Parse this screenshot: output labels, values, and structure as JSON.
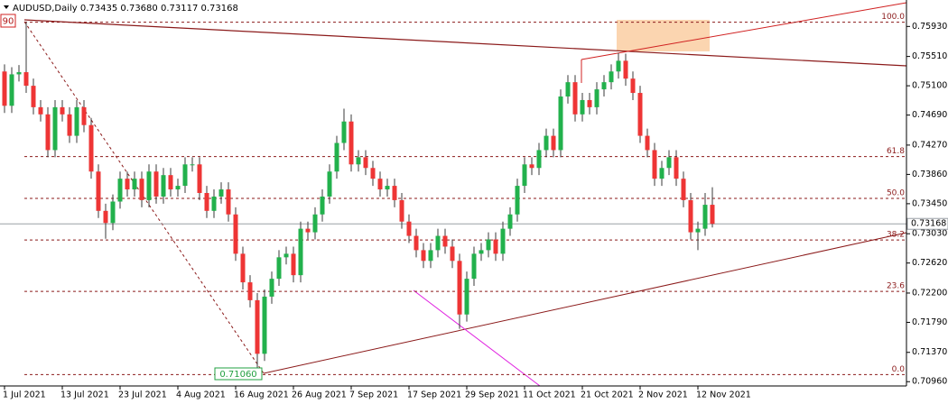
{
  "chart_data": {
    "type": "candlestick",
    "title": "AUDUSD,Daily  0.73435 0.73680 0.73117 0.73168",
    "categories": [
      "1 Jul 2021",
      null,
      null,
      null,
      null,
      null,
      null,
      null,
      "13 Jul 2021",
      null,
      null,
      null,
      null,
      null,
      null,
      null,
      "23 Jul 2021",
      null,
      null,
      null,
      null,
      null,
      null,
      null,
      "4 Aug 2021",
      null,
      null,
      null,
      null,
      null,
      null,
      null,
      "16 Aug 2021",
      null,
      null,
      null,
      null,
      null,
      null,
      null,
      "26 Aug 2021",
      null,
      null,
      null,
      null,
      null,
      null,
      null,
      "7 Sep 2021",
      null,
      null,
      null,
      null,
      null,
      null,
      null,
      "17 Sep 2021",
      null,
      null,
      null,
      null,
      null,
      null,
      null,
      "29 Sep 2021",
      null,
      null,
      null,
      null,
      null,
      null,
      null,
      "11 Oct 2021",
      null,
      null,
      null,
      null,
      null,
      null,
      null,
      "21 Oct 2021",
      null,
      null,
      null,
      null,
      null,
      null,
      null,
      "2 Nov 2021",
      null,
      null,
      null,
      null,
      null,
      null,
      null,
      "12 Nov 2021",
      null,
      null
    ],
    "open": [
      0.753,
      0.7482,
      0.7526,
      0.7529,
      0.751,
      0.748,
      0.747,
      0.742,
      0.748,
      0.747,
      0.744,
      0.748,
      0.7455,
      0.739,
      0.7335,
      0.7318,
      0.7348,
      0.738,
      0.7365,
      0.738,
      0.735,
      0.739,
      0.7355,
      0.7385,
      0.7365,
      0.737,
      0.74,
      0.74,
      0.736,
      0.7335,
      0.7355,
      0.7365,
      0.733,
      0.7275,
      0.7235,
      0.721,
      0.7135,
      0.7215,
      0.724,
      0.727,
      0.7275,
      0.7245,
      0.731,
      0.7305,
      0.733,
      0.7355,
      0.739,
      0.743,
      0.746,
      0.74,
      0.741,
      0.7395,
      0.738,
      0.7365,
      0.737,
      0.735,
      0.732,
      0.73,
      0.728,
      0.7265,
      0.728,
      0.73,
      0.7285,
      0.7265,
      0.719,
      0.724,
      0.7275,
      0.728,
      0.7295,
      0.7275,
      0.731,
      0.733,
      0.737,
      0.74,
      0.7395,
      0.742,
      0.744,
      0.742,
      0.7495,
      0.7515,
      0.747,
      0.749,
      0.748,
      0.7505,
      0.7515,
      0.753,
      0.7545,
      0.752,
      0.75,
      0.744,
      0.742,
      0.738,
      0.7395,
      0.741,
      0.738,
      0.735,
      0.7305,
      0.731,
      0.73435
    ],
    "high": [
      0.754,
      0.7536,
      0.7539,
      0.7599,
      0.752,
      0.749,
      0.748,
      0.749,
      0.749,
      0.748,
      0.749,
      0.749,
      0.7465,
      0.74,
      0.7345,
      0.7358,
      0.739,
      0.739,
      0.739,
      0.739,
      0.74,
      0.74,
      0.7395,
      0.7395,
      0.738,
      0.741,
      0.741,
      0.741,
      0.737,
      0.7365,
      0.7375,
      0.7375,
      0.734,
      0.7285,
      0.7245,
      0.722,
      0.7225,
      0.725,
      0.728,
      0.7285,
      0.7285,
      0.732,
      0.732,
      0.734,
      0.7365,
      0.74,
      0.744,
      0.7478,
      0.747,
      0.742,
      0.742,
      0.7405,
      0.739,
      0.738,
      0.738,
      0.736,
      0.733,
      0.731,
      0.729,
      0.729,
      0.731,
      0.731,
      0.7295,
      0.7275,
      0.725,
      0.7285,
      0.729,
      0.7305,
      0.7305,
      0.732,
      0.734,
      0.738,
      0.741,
      0.741,
      0.743,
      0.745,
      0.745,
      0.7505,
      0.7525,
      0.7525,
      0.75,
      0.75,
      0.7515,
      0.7525,
      0.754,
      0.7556,
      0.7555,
      0.753,
      0.751,
      0.745,
      0.743,
      0.7405,
      0.742,
      0.742,
      0.739,
      0.736,
      0.732,
      0.736,
      0.7368
    ],
    "low": [
      0.7472,
      0.7472,
      0.7516,
      0.75,
      0.747,
      0.746,
      0.741,
      0.741,
      0.746,
      0.743,
      0.743,
      0.7445,
      0.738,
      0.7325,
      0.7296,
      0.7308,
      0.7338,
      0.7355,
      0.7355,
      0.734,
      0.734,
      0.7345,
      0.7345,
      0.7355,
      0.7355,
      0.736,
      0.739,
      0.735,
      0.7325,
      0.7325,
      0.7345,
      0.732,
      0.7265,
      0.7225,
      0.72,
      0.7106,
      0.7125,
      0.7205,
      0.723,
      0.726,
      0.7235,
      0.7235,
      0.7295,
      0.7295,
      0.732,
      0.7345,
      0.738,
      0.742,
      0.739,
      0.739,
      0.7385,
      0.737,
      0.7355,
      0.7355,
      0.734,
      0.731,
      0.729,
      0.727,
      0.7255,
      0.7255,
      0.727,
      0.7275,
      0.7255,
      0.717,
      0.718,
      0.723,
      0.7265,
      0.727,
      0.7265,
      0.7265,
      0.73,
      0.732,
      0.736,
      0.7385,
      0.7385,
      0.741,
      0.741,
      0.741,
      0.7485,
      0.746,
      0.746,
      0.747,
      0.747,
      0.7495,
      0.7505,
      0.752,
      0.751,
      0.749,
      0.743,
      0.741,
      0.737,
      0.737,
      0.7385,
      0.737,
      0.734,
      0.7295,
      0.728,
      0.73,
      0.73117
    ],
    "close": [
      0.7482,
      0.7526,
      0.7529,
      0.751,
      0.748,
      0.747,
      0.742,
      0.748,
      0.747,
      0.744,
      0.748,
      0.7455,
      0.739,
      0.7335,
      0.7318,
      0.7348,
      0.738,
      0.7365,
      0.738,
      0.735,
      0.739,
      0.7355,
      0.7385,
      0.7365,
      0.737,
      0.74,
      0.74,
      0.736,
      0.7335,
      0.7355,
      0.7365,
      0.733,
      0.7275,
      0.7235,
      0.721,
      0.7135,
      0.7215,
      0.724,
      0.727,
      0.7275,
      0.7245,
      0.731,
      0.7305,
      0.733,
      0.7355,
      0.739,
      0.743,
      0.746,
      0.74,
      0.741,
      0.7395,
      0.738,
      0.7365,
      0.737,
      0.735,
      0.732,
      0.73,
      0.728,
      0.7265,
      0.728,
      0.73,
      0.7285,
      0.7265,
      0.719,
      0.724,
      0.7275,
      0.728,
      0.7295,
      0.7275,
      0.731,
      0.733,
      0.737,
      0.74,
      0.7395,
      0.742,
      0.744,
      0.742,
      0.7495,
      0.7515,
      0.747,
      0.749,
      0.748,
      0.7505,
      0.7515,
      0.753,
      0.7545,
      0.752,
      0.75,
      0.744,
      0.742,
      0.738,
      0.7395,
      0.741,
      0.738,
      0.735,
      0.7305,
      0.731,
      0.73435,
      0.73168
    ],
    "up_color": "#22b14c",
    "down_color": "#ee3535",
    "wick_color": "#3a3a3a",
    "ylim": [
      0.709,
      0.763
    ],
    "yticks": [
      {
        "value": 0.7593,
        "label": "0.75930"
      },
      {
        "value": 0.7551,
        "label": "0.75510"
      },
      {
        "value": 0.751,
        "label": "0.75100"
      },
      {
        "value": 0.7469,
        "label": "0.74690"
      },
      {
        "value": 0.7427,
        "label": "0.74270"
      },
      {
        "value": 0.7386,
        "label": "0.73860"
      },
      {
        "value": 0.7345,
        "label": "0.73450"
      },
      {
        "value": 0.7303,
        "label": "0.73030"
      },
      {
        "value": 0.7262,
        "label": "0.72620"
      },
      {
        "value": 0.722,
        "label": "0.72200"
      },
      {
        "value": 0.7179,
        "label": "0.71790"
      },
      {
        "value": 0.7137,
        "label": "0.71370"
      },
      {
        "value": 0.7096,
        "label": "0.70960"
      }
    ],
    "fibonacci": [
      {
        "value": 0.7599,
        "label": "100.0"
      },
      {
        "value": 0.7411,
        "label": "61.8"
      },
      {
        "value": 0.73525,
        "label": "50.0"
      },
      {
        "value": 0.72943,
        "label": "38.2"
      },
      {
        "value": 0.72223,
        "label": "23.6"
      },
      {
        "value": 0.7106,
        "label": "0.0"
      }
    ],
    "last_price": {
      "value": 0.73168,
      "label": "0.73168"
    },
    "annotations": {
      "low_label": "0.71060",
      "high_label": "90"
    }
  }
}
